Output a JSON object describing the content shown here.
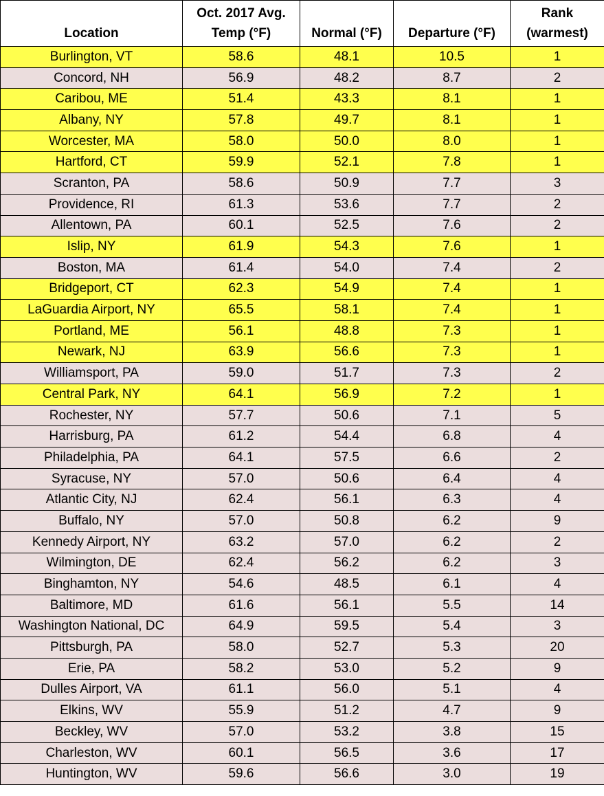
{
  "table": {
    "header": [
      [
        "Location"
      ],
      [
        "Oct. 2017 Avg.",
        "Temp (°F)"
      ],
      [
        "Normal (°F)"
      ],
      [
        "Departure (°F)"
      ],
      [
        "Rank",
        "(warmest)"
      ]
    ],
    "highlight_color": "#ffff4d",
    "plain_color": "#ebdddd",
    "rows": [
      {
        "cells": [
          "Burlington, VT",
          "58.6",
          "48.1",
          "10.5",
          "1"
        ],
        "highlight": true
      },
      {
        "cells": [
          "Concord, NH",
          "56.9",
          "48.2",
          "8.7",
          "2"
        ],
        "highlight": false
      },
      {
        "cells": [
          "Caribou, ME",
          "51.4",
          "43.3",
          "8.1",
          "1"
        ],
        "highlight": true
      },
      {
        "cells": [
          "Albany, NY",
          "57.8",
          "49.7",
          "8.1",
          "1"
        ],
        "highlight": true
      },
      {
        "cells": [
          "Worcester, MA",
          "58.0",
          "50.0",
          "8.0",
          "1"
        ],
        "highlight": true
      },
      {
        "cells": [
          "Hartford, CT",
          "59.9",
          "52.1",
          "7.8",
          "1"
        ],
        "highlight": true
      },
      {
        "cells": [
          "Scranton, PA",
          "58.6",
          "50.9",
          "7.7",
          "3"
        ],
        "highlight": false
      },
      {
        "cells": [
          "Providence, RI",
          "61.3",
          "53.6",
          "7.7",
          "2"
        ],
        "highlight": false
      },
      {
        "cells": [
          "Allentown, PA",
          "60.1",
          "52.5",
          "7.6",
          "2"
        ],
        "highlight": false
      },
      {
        "cells": [
          "Islip, NY",
          "61.9",
          "54.3",
          "7.6",
          "1"
        ],
        "highlight": true
      },
      {
        "cells": [
          "Boston, MA",
          "61.4",
          "54.0",
          "7.4",
          "2"
        ],
        "highlight": false
      },
      {
        "cells": [
          "Bridgeport, CT",
          "62.3",
          "54.9",
          "7.4",
          "1"
        ],
        "highlight": true
      },
      {
        "cells": [
          "LaGuardia Airport, NY",
          "65.5",
          "58.1",
          "7.4",
          "1"
        ],
        "highlight": true
      },
      {
        "cells": [
          "Portland, ME",
          "56.1",
          "48.8",
          "7.3",
          "1"
        ],
        "highlight": true
      },
      {
        "cells": [
          "Newark, NJ",
          "63.9",
          "56.6",
          "7.3",
          "1"
        ],
        "highlight": true
      },
      {
        "cells": [
          "Williamsport, PA",
          "59.0",
          "51.7",
          "7.3",
          "2"
        ],
        "highlight": false
      },
      {
        "cells": [
          "Central Park, NY",
          "64.1",
          "56.9",
          "7.2",
          "1"
        ],
        "highlight": true
      },
      {
        "cells": [
          "Rochester, NY",
          "57.7",
          "50.6",
          "7.1",
          "5"
        ],
        "highlight": false
      },
      {
        "cells": [
          "Harrisburg, PA",
          "61.2",
          "54.4",
          "6.8",
          "4"
        ],
        "highlight": false
      },
      {
        "cells": [
          "Philadelphia, PA",
          "64.1",
          "57.5",
          "6.6",
          "2"
        ],
        "highlight": false
      },
      {
        "cells": [
          "Syracuse, NY",
          "57.0",
          "50.6",
          "6.4",
          "4"
        ],
        "highlight": false
      },
      {
        "cells": [
          "Atlantic City, NJ",
          "62.4",
          "56.1",
          "6.3",
          "4"
        ],
        "highlight": false
      },
      {
        "cells": [
          "Buffalo, NY",
          "57.0",
          "50.8",
          "6.2",
          "9"
        ],
        "highlight": false
      },
      {
        "cells": [
          "Kennedy Airport, NY",
          "63.2",
          "57.0",
          "6.2",
          "2"
        ],
        "highlight": false
      },
      {
        "cells": [
          "Wilmington, DE",
          "62.4",
          "56.2",
          "6.2",
          "3"
        ],
        "highlight": false
      },
      {
        "cells": [
          "Binghamton, NY",
          "54.6",
          "48.5",
          "6.1",
          "4"
        ],
        "highlight": false
      },
      {
        "cells": [
          "Baltimore, MD",
          "61.6",
          "56.1",
          "5.5",
          "14"
        ],
        "highlight": false
      },
      {
        "cells": [
          "Washington National, DC",
          "64.9",
          "59.5",
          "5.4",
          "3"
        ],
        "highlight": false
      },
      {
        "cells": [
          "Pittsburgh, PA",
          "58.0",
          "52.7",
          "5.3",
          "20"
        ],
        "highlight": false
      },
      {
        "cells": [
          "Erie, PA",
          "58.2",
          "53.0",
          "5.2",
          "9"
        ],
        "highlight": false
      },
      {
        "cells": [
          "Dulles Airport, VA",
          "61.1",
          "56.0",
          "5.1",
          "4"
        ],
        "highlight": false
      },
      {
        "cells": [
          "Elkins, WV",
          "55.9",
          "51.2",
          "4.7",
          "9"
        ],
        "highlight": false
      },
      {
        "cells": [
          "Beckley, WV",
          "57.0",
          "53.2",
          "3.8",
          "15"
        ],
        "highlight": false
      },
      {
        "cells": [
          "Charleston, WV",
          "60.1",
          "56.5",
          "3.6",
          "17"
        ],
        "highlight": false
      },
      {
        "cells": [
          "Huntington, WV",
          "59.6",
          "56.6",
          "3.0",
          "19"
        ],
        "highlight": false
      }
    ]
  }
}
